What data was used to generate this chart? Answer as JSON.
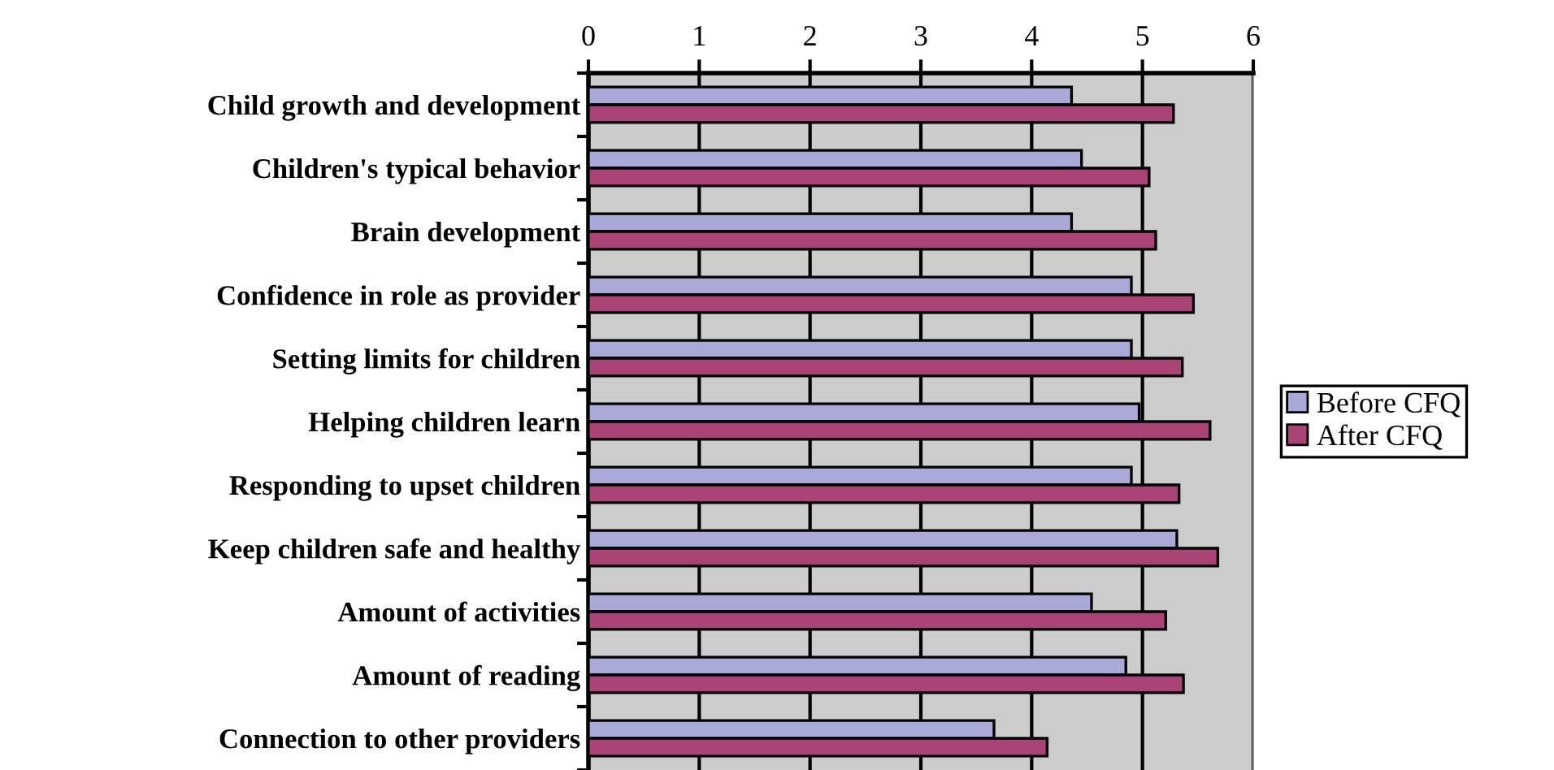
{
  "chart_data": {
    "type": "bar",
    "orientation": "horizontal",
    "categories": [
      "Child growth and development",
      "Children's typical behavior",
      "Brain development",
      "Confidence in role as provider",
      "Setting limits for children",
      "Helping children learn",
      "Responding to upset children",
      "Keep children safe and healthy",
      "Amount of activities",
      "Amount of reading",
      "Connection to other providers"
    ],
    "series": [
      {
        "name": "Before CFQ",
        "color": "#aaaad8",
        "values": [
          4.36,
          4.45,
          4.36,
          4.9,
          4.9,
          4.97,
          4.9,
          5.31,
          4.54,
          4.85,
          3.66
        ]
      },
      {
        "name": "After CFQ",
        "color": "#aa4477",
        "values": [
          5.28,
          5.06,
          5.12,
          5.46,
          5.36,
          5.61,
          5.33,
          5.68,
          5.21,
          5.37,
          4.14
        ]
      }
    ],
    "xlim": [
      0,
      6
    ],
    "xticks": [
      0,
      1,
      2,
      3,
      4,
      5,
      6
    ],
    "grid": "x",
    "legend": "right"
  }
}
